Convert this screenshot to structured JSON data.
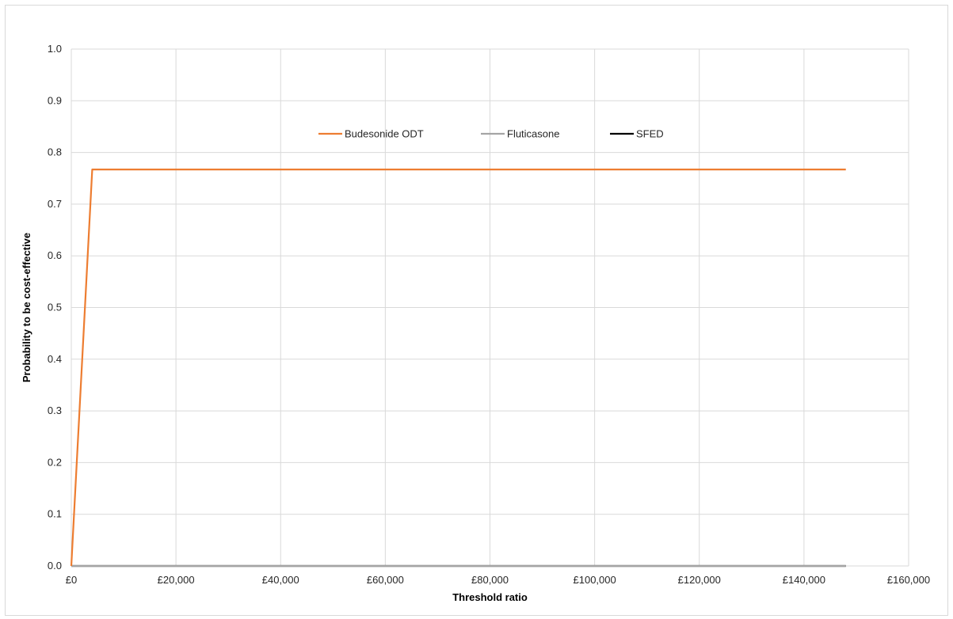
{
  "chart_data": {
    "type": "line",
    "title": "",
    "xlabel": "Threshold ratio",
    "ylabel": "Probability to be cost-effective",
    "xlim": [
      0,
      160000
    ],
    "ylim": [
      0,
      1.0
    ],
    "x_ticks": [
      0,
      20000,
      40000,
      60000,
      80000,
      100000,
      120000,
      140000,
      160000
    ],
    "x_tick_labels": [
      "£0",
      "£20,000",
      "£40,000",
      "£60,000",
      "£80,000",
      "£100,000",
      "£120,000",
      "£140,000",
      "£160,000"
    ],
    "y_ticks": [
      0,
      0.1,
      0.2,
      0.3,
      0.4,
      0.5,
      0.6,
      0.7,
      0.8,
      0.9,
      1.0
    ],
    "y_tick_labels": [
      "0.0",
      "0.1",
      "0.2",
      "0.3",
      "0.4",
      "0.5",
      "0.6",
      "0.7",
      "0.8",
      "0.9",
      "1.0"
    ],
    "grid": true,
    "legend_position": "top-center",
    "series": [
      {
        "name": "Budesonide ODT",
        "color": "#ED7D31",
        "x": [
          0,
          4000,
          148000
        ],
        "y": [
          0,
          0.767,
          0.767
        ]
      },
      {
        "name": "Fluticasone",
        "color": "#A5A5A5",
        "x": [
          0,
          148000
        ],
        "y": [
          0,
          0
        ]
      },
      {
        "name": "SFED",
        "color": "#000000",
        "x": [
          0,
          148000
        ],
        "y": [
          0,
          0
        ]
      }
    ]
  }
}
